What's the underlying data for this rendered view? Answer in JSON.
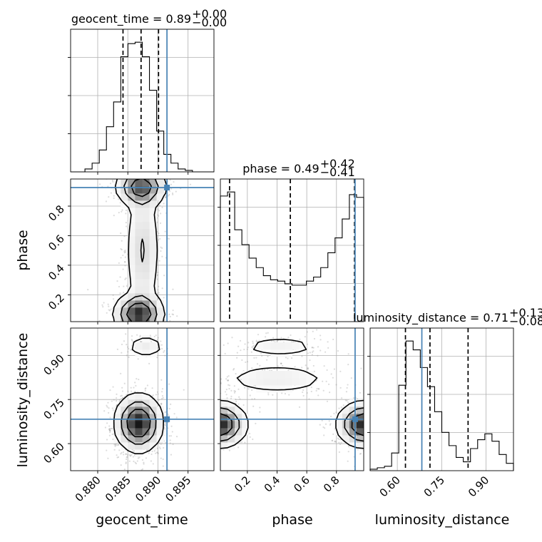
{
  "chart_data": {
    "type": "corner",
    "parameters": [
      "geocent_time",
      "phase",
      "luminosity_distance"
    ],
    "axis_labels": {
      "geocent_time": "geocent_time",
      "phase": "phase",
      "luminosity_distance": "luminosity_distance"
    },
    "ranges": {
      "geocent_time": [
        0.8755,
        0.8993
      ],
      "phase": [
        0.0182,
        0.9835
      ],
      "luminosity_distance": [
        0.508,
        0.993
      ]
    },
    "ticks": {
      "geocent_time": [
        "0.880",
        "0.885",
        "0.890",
        "0.895"
      ],
      "phase": [
        "0.2",
        "0.4",
        "0.6",
        "0.8"
      ],
      "luminosity_distance": [
        "0.60",
        "0.75",
        "0.90"
      ]
    },
    "truths": {
      "geocent_time": 0.8915,
      "phase": 0.9255,
      "luminosity_distance": 0.683
    },
    "truth_color": "#4682b4",
    "titles": [
      {
        "param": "geocent_time",
        "text": "geocent_time = 0.89",
        "plus": "+0.00",
        "minus": "−0.00"
      },
      {
        "param": "phase",
        "text": "phase = 0.49",
        "plus": "+0.42",
        "minus": "−0.41"
      },
      {
        "param": "luminosity_distance",
        "text": "luminosity_distance = 0.71",
        "plus": "+0.13",
        "minus": "−0.08"
      }
    ],
    "quantiles": {
      "geocent_time": [
        0.8842,
        0.8872,
        0.8901
      ],
      "phase": [
        0.0801,
        0.4894,
        0.9217
      ],
      "luminosity_distance": [
        0.6275,
        0.7105,
        0.8394
      ]
    },
    "histograms": {
      "geocent_time": {
        "edges_start": 0.8755,
        "edges_stop": 0.8993,
        "bins": 20,
        "counts": [
          0,
          0,
          2,
          6,
          15,
          31,
          48,
          79,
          88,
          89,
          79,
          56,
          28,
          12,
          6,
          2,
          1,
          0,
          0,
          0
        ]
      },
      "phase": {
        "edges_start": 0.0182,
        "edges_stop": 0.9835,
        "bins": 20,
        "counts": [
          93,
          96,
          68,
          57,
          47,
          40,
          34,
          31,
          30,
          28,
          27,
          27,
          30,
          33,
          40,
          51,
          62,
          76,
          94,
          92
        ]
      },
      "luminosity_distance": {
        "edges_start": 0.508,
        "edges_stop": 0.993,
        "bins": 20,
        "counts": [
          1,
          2,
          3,
          12,
          58,
          88,
          82,
          70,
          57,
          40,
          26,
          17,
          9,
          6,
          15,
          21,
          25,
          20,
          11,
          5
        ]
      }
    },
    "contour_levels": [
      0.39,
      0.86,
      0.99
    ],
    "grid": true
  }
}
